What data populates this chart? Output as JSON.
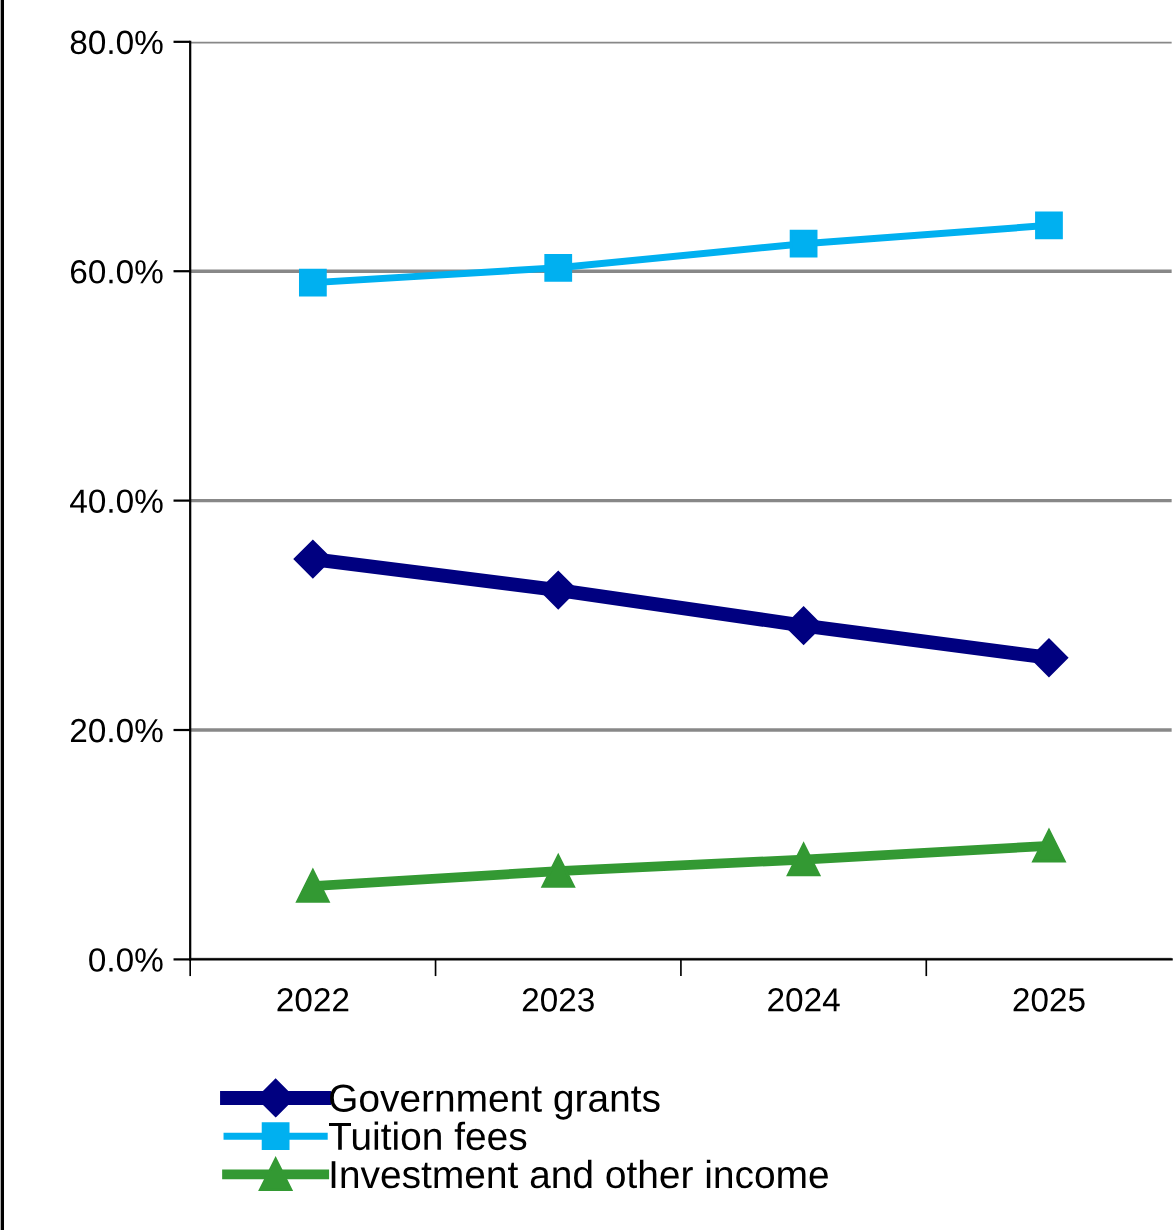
{
  "chart_data": {
    "type": "line",
    "categories": [
      "2022",
      "2023",
      "2024",
      "2025"
    ],
    "series": [
      {
        "name": "Government grants",
        "color": "#000080",
        "values": [
          34.9,
          32.2,
          29.1,
          26.3
        ],
        "marker": "diamond"
      },
      {
        "name": "Tuition fees",
        "color": "#00b0f0",
        "values": [
          59.0,
          60.3,
          62.4,
          64.0
        ],
        "marker": "square"
      },
      {
        "name": "Investment and other income",
        "color": "#339933",
        "values": [
          6.4,
          7.7,
          8.7,
          9.9
        ],
        "marker": "triangle"
      }
    ],
    "ylim": [
      0,
      80
    ],
    "yticks": [
      {
        "value": 0,
        "label": "0.0%"
      },
      {
        "value": 20,
        "label": "20.0%"
      },
      {
        "value": 40,
        "label": "40.0%"
      },
      {
        "value": 60,
        "label": "60.0%"
      },
      {
        "value": 80,
        "label": "80.0%"
      }
    ],
    "grid": "y",
    "legend": "bottom",
    "line_style": "solid"
  }
}
